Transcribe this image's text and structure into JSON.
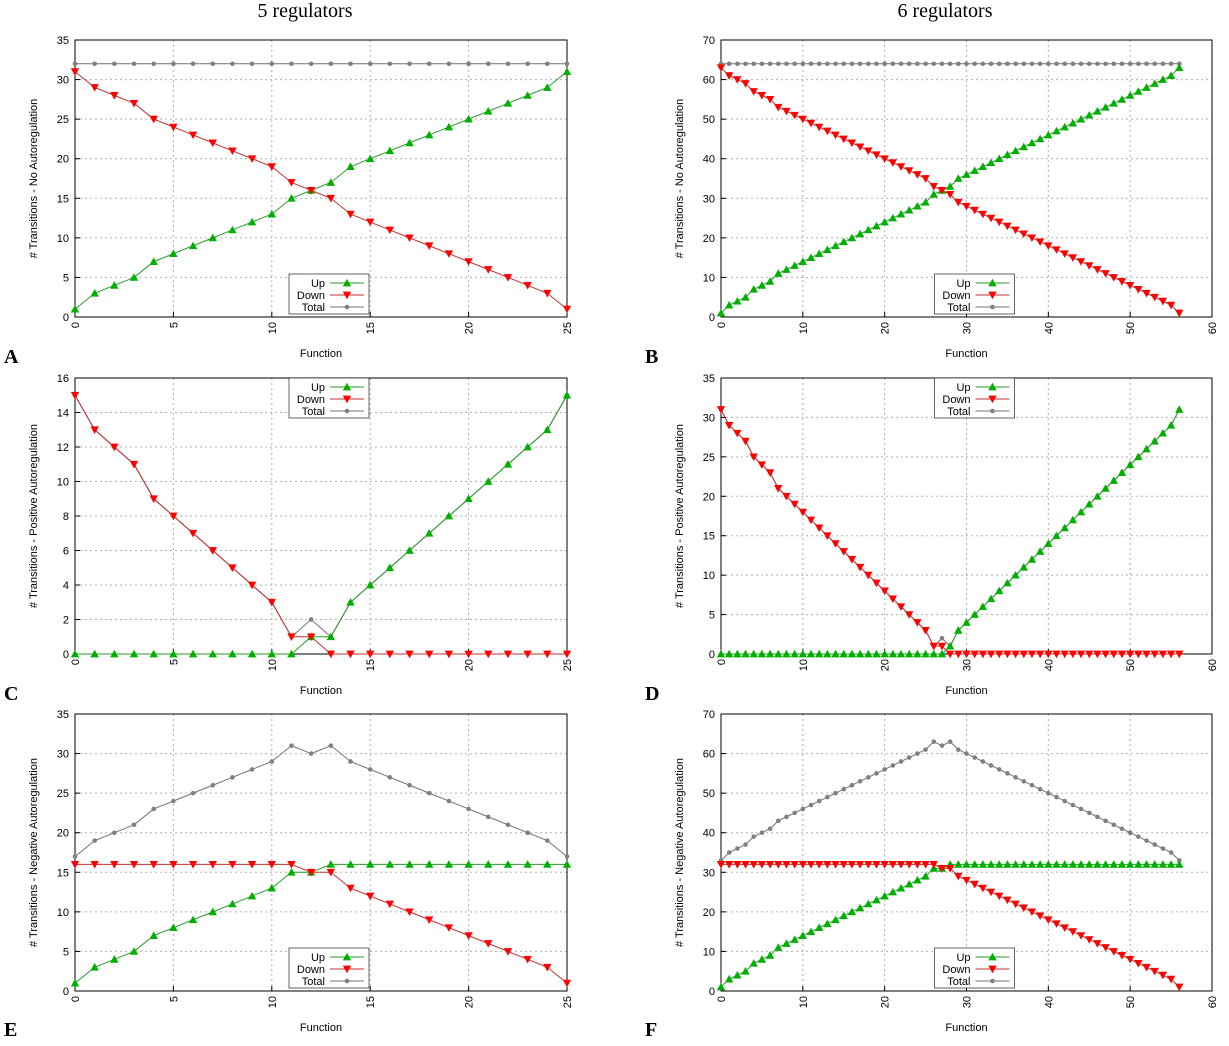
{
  "column_titles": [
    "5 regulators",
    "6 regulators"
  ],
  "panel_labels": [
    "A",
    "B",
    "C",
    "D",
    "E",
    "F"
  ],
  "colors": {
    "up": "#00b000",
    "down": "#ff0000",
    "total": "#808080",
    "line_up": "#2a9a2a",
    "line_down": "#c03030",
    "line_total": "#707070"
  },
  "chart_data": [
    {
      "id": "A",
      "type": "line",
      "xlabel": "Function",
      "ylabel": "# Transitions - No Autoregulation",
      "xlim": [
        0,
        25
      ],
      "ylim": [
        0,
        35
      ],
      "xticks": [
        0,
        5,
        10,
        15,
        20,
        25
      ],
      "yticks": [
        0,
        5,
        10,
        15,
        20,
        25,
        30,
        35
      ],
      "grid": true,
      "legend_position": "bottom-center",
      "series": [
        {
          "name": "Up",
          "marker": "triangle-up",
          "values": [
            1,
            3,
            4,
            5,
            7,
            8,
            9,
            10,
            11,
            12,
            13,
            15,
            16,
            17,
            19,
            20,
            21,
            22,
            23,
            24,
            25,
            26,
            27,
            28,
            29,
            31
          ]
        },
        {
          "name": "Down",
          "marker": "triangle-down",
          "values": [
            31,
            29,
            28,
            27,
            25,
            24,
            23,
            22,
            21,
            20,
            19,
            17,
            16,
            15,
            13,
            12,
            11,
            10,
            9,
            8,
            7,
            6,
            5,
            4,
            3,
            1
          ]
        },
        {
          "name": "Total",
          "marker": "circle",
          "values": [
            32,
            32,
            32,
            32,
            32,
            32,
            32,
            32,
            32,
            32,
            32,
            32,
            32,
            32,
            32,
            32,
            32,
            32,
            32,
            32,
            32,
            32,
            32,
            32,
            32,
            32
          ]
        }
      ]
    },
    {
      "id": "B",
      "type": "line",
      "xlabel": "Function",
      "ylabel": "# Transitions - No Autoregulation",
      "xlim": [
        0,
        60
      ],
      "ylim": [
        0,
        70
      ],
      "xticks": [
        0,
        10,
        20,
        30,
        40,
        50,
        60
      ],
      "yticks": [
        0,
        10,
        20,
        30,
        40,
        50,
        60,
        70
      ],
      "grid": true,
      "legend_position": "bottom-center",
      "series": [
        {
          "name": "Up",
          "marker": "triangle-up",
          "values": [
            1,
            3,
            4,
            5,
            7,
            8,
            9,
            11,
            12,
            13,
            14,
            15,
            16,
            17,
            18,
            19,
            20,
            21,
            22,
            23,
            24,
            25,
            26,
            27,
            28,
            29,
            31,
            32,
            33,
            35,
            36,
            37,
            38,
            39,
            40,
            41,
            42,
            43,
            44,
            45,
            46,
            47,
            48,
            49,
            50,
            51,
            52,
            53,
            54,
            55,
            56,
            57,
            58,
            59,
            60,
            61,
            63
          ]
        },
        {
          "name": "Down",
          "marker": "triangle-down",
          "values": [
            63,
            61,
            60,
            59,
            57,
            56,
            55,
            53,
            52,
            51,
            50,
            49,
            48,
            47,
            46,
            45,
            44,
            43,
            42,
            41,
            40,
            39,
            38,
            37,
            36,
            35,
            33,
            32,
            31,
            29,
            28,
            27,
            26,
            25,
            24,
            23,
            22,
            21,
            20,
            19,
            18,
            17,
            16,
            15,
            14,
            13,
            12,
            11,
            10,
            9,
            8,
            7,
            6,
            5,
            4,
            3,
            1
          ]
        },
        {
          "name": "Total",
          "marker": "circle",
          "values": [
            64,
            64,
            64,
            64,
            64,
            64,
            64,
            64,
            64,
            64,
            64,
            64,
            64,
            64,
            64,
            64,
            64,
            64,
            64,
            64,
            64,
            64,
            64,
            64,
            64,
            64,
            64,
            64,
            64,
            64,
            64,
            64,
            64,
            64,
            64,
            64,
            64,
            64,
            64,
            64,
            64,
            64,
            64,
            64,
            64,
            64,
            64,
            64,
            64,
            64,
            64,
            64,
            64,
            64,
            64,
            64,
            64
          ]
        }
      ]
    },
    {
      "id": "C",
      "type": "line",
      "xlabel": "Function",
      "ylabel": "# Transitions - Positive Autoregulation",
      "xlim": [
        0,
        25
      ],
      "ylim": [
        0,
        16
      ],
      "xticks": [
        0,
        5,
        10,
        15,
        20,
        25
      ],
      "yticks": [
        0,
        2,
        4,
        6,
        8,
        10,
        12,
        14,
        16
      ],
      "grid": true,
      "legend_position": "top-center",
      "series": [
        {
          "name": "Up",
          "marker": "triangle-up",
          "values": [
            0,
            0,
            0,
            0,
            0,
            0,
            0,
            0,
            0,
            0,
            0,
            0,
            1,
            1,
            3,
            4,
            5,
            6,
            7,
            8,
            9,
            10,
            11,
            12,
            13,
            15
          ]
        },
        {
          "name": "Down",
          "marker": "triangle-down",
          "values": [
            15,
            13,
            12,
            11,
            9,
            8,
            7,
            6,
            5,
            4,
            3,
            1,
            1,
            0,
            0,
            0,
            0,
            0,
            0,
            0,
            0,
            0,
            0,
            0,
            0,
            0
          ]
        },
        {
          "name": "Total",
          "marker": "circle",
          "values": [
            15,
            13,
            12,
            11,
            9,
            8,
            7,
            6,
            5,
            4,
            3,
            1,
            2,
            1,
            3,
            4,
            5,
            6,
            7,
            8,
            9,
            10,
            11,
            12,
            13,
            15
          ]
        }
      ]
    },
    {
      "id": "D",
      "type": "line",
      "xlabel": "Function",
      "ylabel": "# Transitions - Positive Autoregulation",
      "xlim": [
        0,
        60
      ],
      "ylim": [
        0,
        35
      ],
      "xticks": [
        0,
        10,
        20,
        30,
        40,
        50,
        60
      ],
      "yticks": [
        0,
        5,
        10,
        15,
        20,
        25,
        30,
        35
      ],
      "grid": true,
      "legend_position": "top-center",
      "series": [
        {
          "name": "Up",
          "marker": "triangle-up",
          "values": [
            0,
            0,
            0,
            0,
            0,
            0,
            0,
            0,
            0,
            0,
            0,
            0,
            0,
            0,
            0,
            0,
            0,
            0,
            0,
            0,
            0,
            0,
            0,
            0,
            0,
            0,
            0,
            0,
            1,
            3,
            4,
            5,
            6,
            7,
            8,
            9,
            10,
            11,
            12,
            13,
            14,
            15,
            16,
            17,
            18,
            19,
            20,
            21,
            22,
            23,
            24,
            25,
            26,
            27,
            28,
            29,
            31
          ]
        },
        {
          "name": "Down",
          "marker": "triangle-down",
          "values": [
            31,
            29,
            28,
            27,
            25,
            24,
            23,
            21,
            20,
            19,
            18,
            17,
            16,
            15,
            14,
            13,
            12,
            11,
            10,
            9,
            8,
            7,
            6,
            5,
            4,
            3,
            1,
            1,
            0,
            0,
            0,
            0,
            0,
            0,
            0,
            0,
            0,
            0,
            0,
            0,
            0,
            0,
            0,
            0,
            0,
            0,
            0,
            0,
            0,
            0,
            0,
            0,
            0,
            0,
            0,
            0,
            0
          ]
        },
        {
          "name": "Total",
          "marker": "circle",
          "values": [
            31,
            29,
            28,
            27,
            25,
            24,
            23,
            21,
            20,
            19,
            18,
            17,
            16,
            15,
            14,
            13,
            12,
            11,
            10,
            9,
            8,
            7,
            6,
            5,
            4,
            3,
            1,
            2,
            1,
            3,
            4,
            5,
            6,
            7,
            8,
            9,
            10,
            11,
            12,
            13,
            14,
            15,
            16,
            17,
            18,
            19,
            20,
            21,
            22,
            23,
            24,
            25,
            26,
            27,
            28,
            29,
            31
          ]
        }
      ]
    },
    {
      "id": "E",
      "type": "line",
      "xlabel": "Function",
      "ylabel": "# Transitions - Negative Autoregulation",
      "xlim": [
        0,
        25
      ],
      "ylim": [
        0,
        35
      ],
      "xticks": [
        0,
        5,
        10,
        15,
        20,
        25
      ],
      "yticks": [
        0,
        5,
        10,
        15,
        20,
        25,
        30,
        35
      ],
      "grid": true,
      "legend_position": "bottom-center",
      "series": [
        {
          "name": "Up",
          "marker": "triangle-up",
          "values": [
            1,
            3,
            4,
            5,
            7,
            8,
            9,
            10,
            11,
            12,
            13,
            15,
            15,
            16,
            16,
            16,
            16,
            16,
            16,
            16,
            16,
            16,
            16,
            16,
            16,
            16
          ]
        },
        {
          "name": "Down",
          "marker": "triangle-down",
          "values": [
            16,
            16,
            16,
            16,
            16,
            16,
            16,
            16,
            16,
            16,
            16,
            16,
            15,
            15,
            13,
            12,
            11,
            10,
            9,
            8,
            7,
            6,
            5,
            4,
            3,
            1
          ]
        },
        {
          "name": "Total",
          "marker": "circle",
          "values": [
            17,
            19,
            20,
            21,
            23,
            24,
            25,
            26,
            27,
            28,
            29,
            31,
            30,
            31,
            29,
            28,
            27,
            26,
            25,
            24,
            23,
            22,
            21,
            20,
            19,
            17
          ]
        }
      ]
    },
    {
      "id": "F",
      "type": "line",
      "xlabel": "Function",
      "ylabel": "# Transitions - Negative Autoregulation",
      "xlim": [
        0,
        60
      ],
      "ylim": [
        0,
        70
      ],
      "xticks": [
        0,
        10,
        20,
        30,
        40,
        50,
        60
      ],
      "yticks": [
        0,
        10,
        20,
        30,
        40,
        50,
        60,
        70
      ],
      "grid": true,
      "legend_position": "bottom-center",
      "series": [
        {
          "name": "Up",
          "marker": "triangle-up",
          "values": [
            1,
            3,
            4,
            5,
            7,
            8,
            9,
            11,
            12,
            13,
            14,
            15,
            16,
            17,
            18,
            19,
            20,
            21,
            22,
            23,
            24,
            25,
            26,
            27,
            28,
            29,
            31,
            31,
            32,
            32,
            32,
            32,
            32,
            32,
            32,
            32,
            32,
            32,
            32,
            32,
            32,
            32,
            32,
            32,
            32,
            32,
            32,
            32,
            32,
            32,
            32,
            32,
            32,
            32,
            32,
            32,
            32
          ]
        },
        {
          "name": "Down",
          "marker": "triangle-down",
          "values": [
            32,
            32,
            32,
            32,
            32,
            32,
            32,
            32,
            32,
            32,
            32,
            32,
            32,
            32,
            32,
            32,
            32,
            32,
            32,
            32,
            32,
            32,
            32,
            32,
            32,
            32,
            32,
            31,
            31,
            29,
            28,
            27,
            26,
            25,
            24,
            23,
            22,
            21,
            20,
            19,
            18,
            17,
            16,
            15,
            14,
            13,
            12,
            11,
            10,
            9,
            8,
            7,
            6,
            5,
            4,
            3,
            1
          ]
        },
        {
          "name": "Total",
          "marker": "circle",
          "values": [
            33,
            35,
            36,
            37,
            39,
            40,
            41,
            43,
            44,
            45,
            46,
            47,
            48,
            49,
            50,
            51,
            52,
            53,
            54,
            55,
            56,
            57,
            58,
            59,
            60,
            61,
            63,
            62,
            63,
            61,
            60,
            59,
            58,
            57,
            56,
            55,
            54,
            53,
            52,
            51,
            50,
            49,
            48,
            47,
            46,
            45,
            44,
            43,
            42,
            41,
            40,
            39,
            38,
            37,
            36,
            35,
            33
          ]
        }
      ]
    }
  ]
}
